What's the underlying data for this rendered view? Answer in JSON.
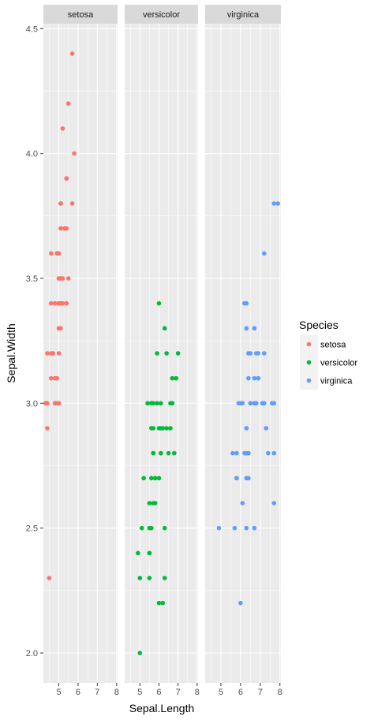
{
  "chart_data": {
    "type": "scatter",
    "facet_by": "Species",
    "facets": [
      "setosa",
      "versicolor",
      "virginica"
    ],
    "xlabel": "Sepal.Length",
    "ylabel": "Sepal.Width",
    "xlim": [
      4.2,
      8.05
    ],
    "ylim": [
      1.88,
      4.52
    ],
    "x_ticks": [
      5,
      6,
      7,
      8
    ],
    "y_ticks": [
      2.0,
      2.5,
      3.0,
      3.5,
      4.0,
      4.5
    ],
    "y_tick_labels": [
      "2.0",
      "2.5",
      "3.0",
      "3.5",
      "4.0",
      "4.5"
    ],
    "legend": {
      "title": "Species",
      "placement": "right",
      "entries": [
        "setosa",
        "versicolor",
        "virginica"
      ]
    },
    "colors": {
      "setosa": "#F8766D",
      "versicolor": "#00BA38",
      "virginica": "#619CFF",
      "panel_bg": "#EBEBEB",
      "strip_bg": "#D9D9D9",
      "grid": "#FFFFFF"
    },
    "series": [
      {
        "name": "setosa",
        "points": [
          [
            5.1,
            3.5
          ],
          [
            4.9,
            3.0
          ],
          [
            4.7,
            3.2
          ],
          [
            4.6,
            3.1
          ],
          [
            5.0,
            3.6
          ],
          [
            5.4,
            3.9
          ],
          [
            4.6,
            3.4
          ],
          [
            5.0,
            3.4
          ],
          [
            4.4,
            2.9
          ],
          [
            4.9,
            3.1
          ],
          [
            5.4,
            3.7
          ],
          [
            4.8,
            3.4
          ],
          [
            4.8,
            3.0
          ],
          [
            4.3,
            3.0
          ],
          [
            5.8,
            4.0
          ],
          [
            5.7,
            4.4
          ],
          [
            5.4,
            3.9
          ],
          [
            5.1,
            3.5
          ],
          [
            5.7,
            3.8
          ],
          [
            5.1,
            3.8
          ],
          [
            5.4,
            3.4
          ],
          [
            5.1,
            3.7
          ],
          [
            4.6,
            3.6
          ],
          [
            5.1,
            3.3
          ],
          [
            4.8,
            3.4
          ],
          [
            5.0,
            3.0
          ],
          [
            5.0,
            3.4
          ],
          [
            5.2,
            3.5
          ],
          [
            5.2,
            3.4
          ],
          [
            4.7,
            3.2
          ],
          [
            4.8,
            3.1
          ],
          [
            5.4,
            3.4
          ],
          [
            5.2,
            4.1
          ],
          [
            5.5,
            4.2
          ],
          [
            4.9,
            3.1
          ],
          [
            5.0,
            3.2
          ],
          [
            5.5,
            3.5
          ],
          [
            4.9,
            3.6
          ],
          [
            4.4,
            3.0
          ],
          [
            5.1,
            3.4
          ],
          [
            5.0,
            3.5
          ],
          [
            4.5,
            2.3
          ],
          [
            4.4,
            3.2
          ],
          [
            5.0,
            3.5
          ],
          [
            5.1,
            3.8
          ],
          [
            4.8,
            3.0
          ],
          [
            5.1,
            3.8
          ],
          [
            4.6,
            3.2
          ],
          [
            5.3,
            3.7
          ],
          [
            5.0,
            3.3
          ]
        ]
      },
      {
        "name": "versicolor",
        "points": [
          [
            7.0,
            3.2
          ],
          [
            6.4,
            3.2
          ],
          [
            6.9,
            3.1
          ],
          [
            5.5,
            2.3
          ],
          [
            6.5,
            2.8
          ],
          [
            5.7,
            2.8
          ],
          [
            6.3,
            3.3
          ],
          [
            4.9,
            2.4
          ],
          [
            6.6,
            2.9
          ],
          [
            5.2,
            2.7
          ],
          [
            5.0,
            2.0
          ],
          [
            5.9,
            3.0
          ],
          [
            6.0,
            2.2
          ],
          [
            6.1,
            2.9
          ],
          [
            5.6,
            2.9
          ],
          [
            6.7,
            3.1
          ],
          [
            5.6,
            3.0
          ],
          [
            5.8,
            2.7
          ],
          [
            6.2,
            2.2
          ],
          [
            5.6,
            2.5
          ],
          [
            5.9,
            3.2
          ],
          [
            6.1,
            2.8
          ],
          [
            6.3,
            2.5
          ],
          [
            6.1,
            2.8
          ],
          [
            6.4,
            2.9
          ],
          [
            6.6,
            3.0
          ],
          [
            6.8,
            2.8
          ],
          [
            6.7,
            3.0
          ],
          [
            6.0,
            2.9
          ],
          [
            5.7,
            2.6
          ],
          [
            5.5,
            2.4
          ],
          [
            5.5,
            2.4
          ],
          [
            5.8,
            2.7
          ],
          [
            6.0,
            2.7
          ],
          [
            5.4,
            3.0
          ],
          [
            6.0,
            3.4
          ],
          [
            6.7,
            3.1
          ],
          [
            6.3,
            2.3
          ],
          [
            5.6,
            3.0
          ],
          [
            5.5,
            2.5
          ],
          [
            5.5,
            2.6
          ],
          [
            6.1,
            3.0
          ],
          [
            5.8,
            2.6
          ],
          [
            5.0,
            2.3
          ],
          [
            5.6,
            2.7
          ],
          [
            5.7,
            3.0
          ],
          [
            5.7,
            2.9
          ],
          [
            6.2,
            2.9
          ],
          [
            5.1,
            2.5
          ],
          [
            5.7,
            2.8
          ]
        ]
      },
      {
        "name": "virginica",
        "points": [
          [
            6.3,
            3.3
          ],
          [
            5.8,
            2.7
          ],
          [
            7.1,
            3.0
          ],
          [
            6.3,
            2.9
          ],
          [
            6.5,
            3.0
          ],
          [
            7.6,
            3.0
          ],
          [
            4.9,
            2.5
          ],
          [
            7.3,
            2.9
          ],
          [
            6.7,
            2.5
          ],
          [
            7.2,
            3.6
          ],
          [
            6.5,
            3.2
          ],
          [
            6.4,
            2.7
          ],
          [
            6.8,
            3.0
          ],
          [
            5.7,
            2.5
          ],
          [
            5.8,
            2.8
          ],
          [
            6.4,
            3.2
          ],
          [
            6.5,
            3.0
          ],
          [
            7.7,
            3.8
          ],
          [
            7.7,
            2.6
          ],
          [
            6.0,
            2.2
          ],
          [
            6.9,
            3.2
          ],
          [
            5.6,
            2.8
          ],
          [
            7.7,
            2.8
          ],
          [
            6.3,
            2.7
          ],
          [
            6.7,
            3.3
          ],
          [
            7.2,
            3.2
          ],
          [
            6.2,
            2.8
          ],
          [
            6.1,
            3.0
          ],
          [
            6.4,
            2.8
          ],
          [
            7.2,
            3.0
          ],
          [
            7.4,
            2.8
          ],
          [
            7.9,
            3.8
          ],
          [
            6.4,
            2.8
          ],
          [
            6.3,
            2.8
          ],
          [
            6.1,
            2.6
          ],
          [
            7.7,
            3.0
          ],
          [
            6.3,
            3.4
          ],
          [
            6.4,
            3.1
          ],
          [
            6.0,
            3.0
          ],
          [
            6.9,
            3.1
          ],
          [
            6.7,
            3.1
          ],
          [
            6.9,
            3.1
          ],
          [
            5.8,
            2.7
          ],
          [
            6.8,
            3.2
          ],
          [
            6.7,
            3.3
          ],
          [
            6.7,
            3.0
          ],
          [
            6.3,
            2.5
          ],
          [
            6.5,
            3.0
          ],
          [
            6.2,
            3.4
          ],
          [
            5.9,
            3.0
          ]
        ]
      }
    ]
  }
}
